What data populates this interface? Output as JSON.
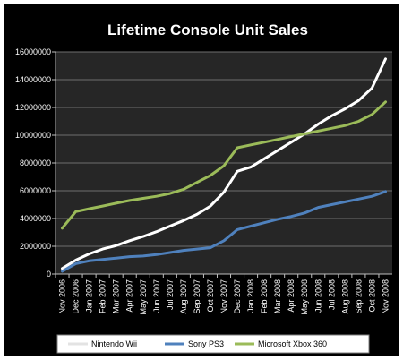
{
  "chart_data": {
    "type": "line",
    "title": "Lifetime Console Unit Sales",
    "ylim": [
      0,
      16000000
    ],
    "yticks": [
      0,
      2000000,
      4000000,
      6000000,
      8000000,
      10000000,
      12000000,
      14000000,
      16000000
    ],
    "ytick_labels": [
      "0",
      "2000000",
      "4000000",
      "6000000",
      "8000000",
      "10000000",
      "12000000",
      "14000000",
      "16000000"
    ],
    "grid": true,
    "legend_position": "bottom",
    "background": "#000000",
    "plot_background": "#262626",
    "categories": [
      "Nov 2006",
      "Dec 2006",
      "Jan 2007",
      "Feb 2007",
      "Mar 2007",
      "Apr 2007",
      "May 2007",
      "Jun 2007",
      "Jul 2007",
      "Aug 2007",
      "Sep 2007",
      "Oct 2007",
      "Nov 2007",
      "Dec 2007",
      "Jan 2008",
      "Feb 2008",
      "Mar 2008",
      "Apr 2008",
      "May 2008",
      "Jun 2008",
      "Jul 2008",
      "Aug 2008",
      "Sep 2008",
      "Oct 2008",
      "Nov 2008"
    ],
    "series": [
      {
        "name": "Nintendo Wii",
        "color": "#ffffff",
        "values": [
          400000,
          1000000,
          1450000,
          1800000,
          2050000,
          2400000,
          2700000,
          3050000,
          3450000,
          3850000,
          4300000,
          4900000,
          5900000,
          7400000,
          7700000,
          8300000,
          8900000,
          9500000,
          10100000,
          10800000,
          11400000,
          11900000,
          12500000,
          13400000,
          15500000
        ]
      },
      {
        "name": "Sony PS3",
        "color": "#4f81bd",
        "values": [
          200000,
          750000,
          950000,
          1050000,
          1150000,
          1250000,
          1300000,
          1400000,
          1550000,
          1700000,
          1800000,
          1900000,
          2400000,
          3200000,
          3450000,
          3700000,
          3950000,
          4150000,
          4400000,
          4800000,
          5000000,
          5200000,
          5400000,
          5600000,
          5950000
        ]
      },
      {
        "name": "Microsoft Xbox 360",
        "color": "#9bbb59",
        "values": [
          3300000,
          4500000,
          4700000,
          4900000,
          5100000,
          5300000,
          5450000,
          5600000,
          5800000,
          6100000,
          6600000,
          7100000,
          7800000,
          9100000,
          9300000,
          9500000,
          9700000,
          9900000,
          10100000,
          10300000,
          10500000,
          10700000,
          11000000,
          11500000,
          12400000
        ]
      }
    ]
  }
}
